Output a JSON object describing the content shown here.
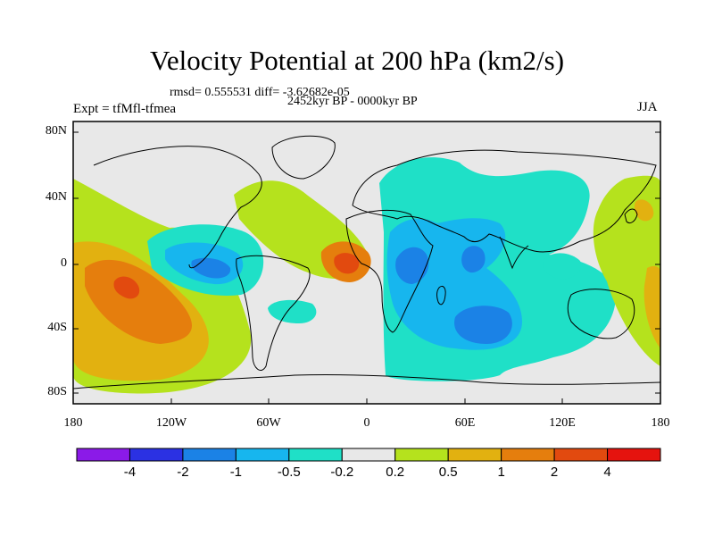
{
  "title": "Velocity Potential at 200 hPa (km2/s)",
  "stats_line": "rmsd= 0.555531 diff= -3.62682e-05",
  "period_line": "2452kyr BP - 0000kyr BP",
  "experiment_label": "Expt = tfMfl-tfmea",
  "season_label": "JJA",
  "lat_ticks": [
    "80N",
    "40N",
    "0",
    "40S",
    "80S"
  ],
  "lon_ticks": [
    "180",
    "120W",
    "60W",
    "0",
    "60E",
    "120E",
    "180"
  ],
  "colorbar": {
    "colors": [
      "#8b1ae8",
      "#2b31e3",
      "#1b82e6",
      "#17b6ee",
      "#1fe0c7",
      "#e8e8e8",
      "#b5e21d",
      "#e2b110",
      "#e57e0d",
      "#e24a0f",
      "#e5130e"
    ],
    "labels": [
      "-4",
      "-2",
      "-1",
      "-0.5",
      "-0.2",
      "0.2",
      "0.5",
      "1",
      "2",
      "4"
    ]
  },
  "map": {
    "background_color": "#e8e8e8"
  }
}
